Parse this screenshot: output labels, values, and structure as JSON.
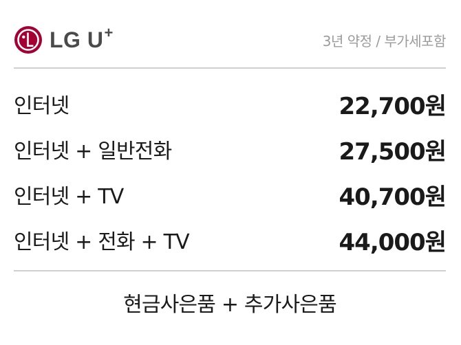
{
  "brand": {
    "name": "LG U",
    "plus": "+",
    "logo_icon": "lg-face-logo-icon",
    "logo_color": "#a50034"
  },
  "header": {
    "plan_note": "3년 약정 / 부가세포함"
  },
  "prices": [
    {
      "label": "인터넷",
      "price": "22,700원"
    },
    {
      "label": "인터넷 + 일반전화",
      "price": "27,500원"
    },
    {
      "label": "인터넷 + TV",
      "price": "40,700원"
    },
    {
      "label": "인터넷 + 전화 + TV",
      "price": "44,000원"
    }
  ],
  "footer": {
    "gift_text": "현금사은품 + 추가사은품"
  }
}
